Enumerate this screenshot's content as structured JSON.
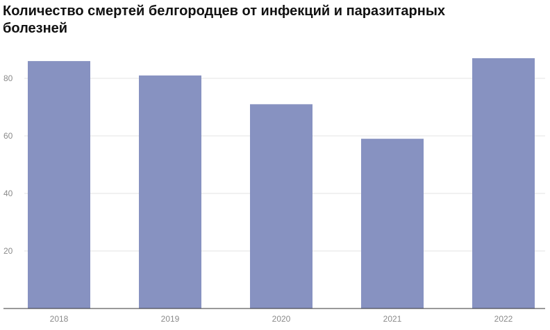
{
  "chart_data": {
    "type": "bar",
    "title": "Количество смертей белгородцев от инфекций и паразитарных болезней",
    "categories": [
      "2018",
      "2019",
      "2020",
      "2021",
      "2022"
    ],
    "values": [
      86,
      81,
      71,
      59,
      87
    ],
    "color": "#8792c1",
    "ylim": [
      0,
      90
    ],
    "yticks": [
      20,
      40,
      60,
      80
    ],
    "grid": true
  }
}
